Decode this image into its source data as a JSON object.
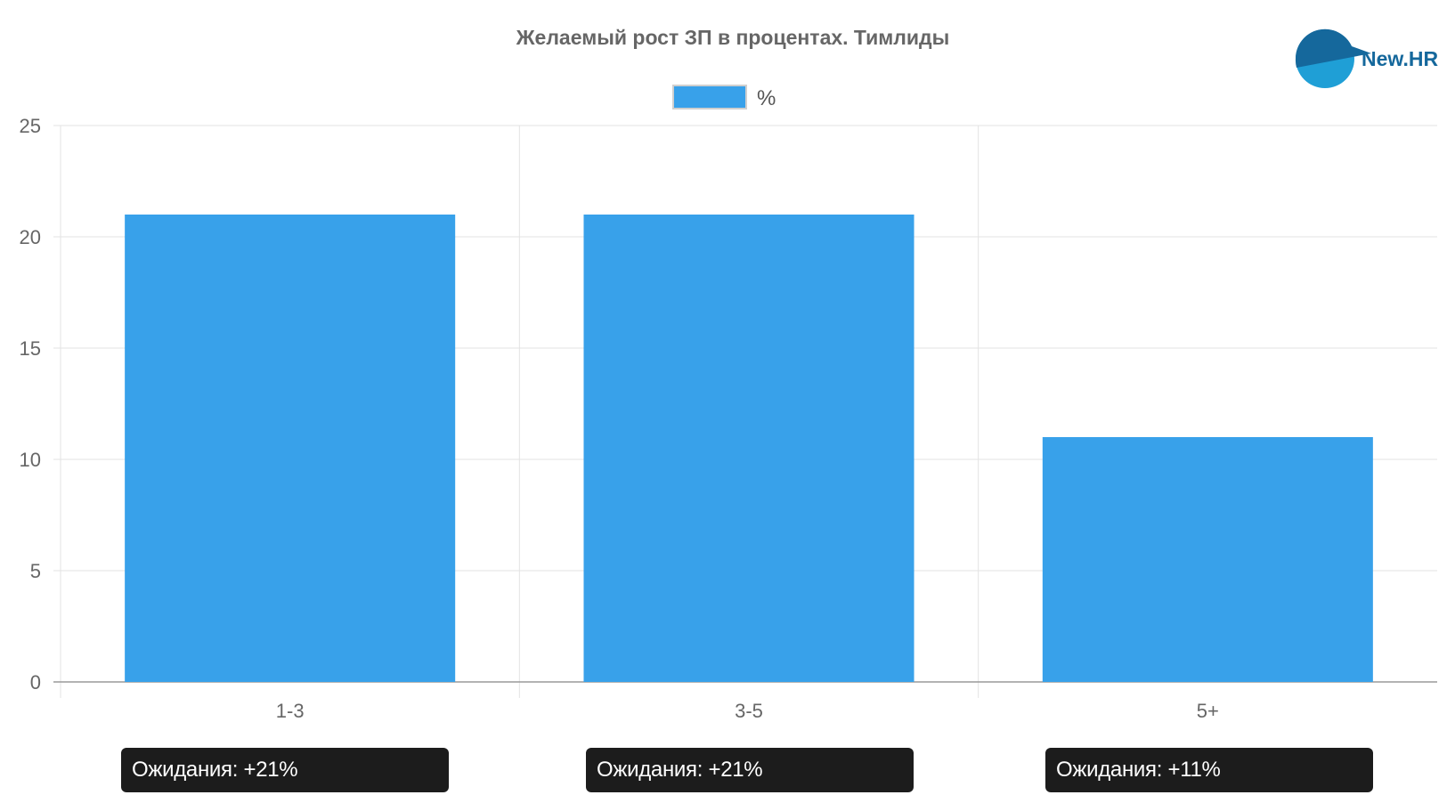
{
  "chart_data": {
    "type": "bar",
    "title": "Желаемый рост ЗП в процентах. Тимлиды",
    "categories": [
      "1-3",
      "3-5",
      "5+"
    ],
    "series": [
      {
        "name": "%",
        "values": [
          21,
          21,
          11
        ],
        "color": "#38a1ea"
      }
    ],
    "ylim": [
      0,
      25
    ],
    "yticks": [
      "0",
      "5",
      "10",
      "15",
      "20",
      "25"
    ],
    "grid": true,
    "legend": "top-center"
  },
  "logo": {
    "text": "New.HR",
    "colors": [
      "#15689c",
      "#1f9fd6"
    ]
  },
  "badges": [
    {
      "text": "Ожидания: +21%"
    },
    {
      "text": "Ожидания: +21%"
    },
    {
      "text": "Ожидания: +11%"
    }
  ]
}
